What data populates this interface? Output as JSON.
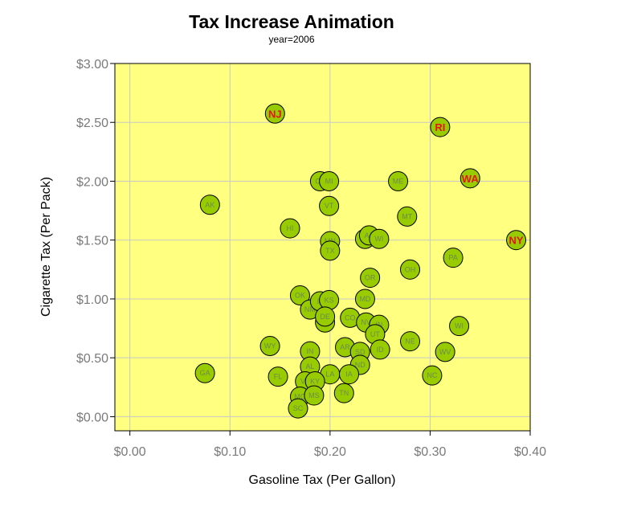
{
  "chart_data": {
    "type": "scatter",
    "title": "Tax Increase Animation",
    "subtitle": "year=2006",
    "xlabel": "Gasoline Tax (Per Gallon)",
    "ylabel": "Cigarette Tax (Per Pack)",
    "xlim": [
      -0.015,
      0.4
    ],
    "ylim": [
      -0.12,
      3.0
    ],
    "xticks": [
      0,
      0.1,
      0.2,
      0.3,
      0.4
    ],
    "xtick_labels": [
      "$0.00",
      "$0.10",
      "$0.20",
      "$0.30",
      "$0.40"
    ],
    "yticks": [
      0,
      0.5,
      1,
      1.5,
      2,
      2.5,
      3
    ],
    "ytick_labels": [
      "$0.00",
      "$0.50",
      "$1.00",
      "$1.50",
      "$2.00",
      "$2.50",
      "$3.00"
    ],
    "grid": true,
    "colors": {
      "plot_background": "#ffff80",
      "grid": "#c8c8c8",
      "marker_fill": "#99cc00",
      "marker_edge": "#000000",
      "label": "#6a8a55",
      "highlight_label": "#e4141a"
    },
    "points": [
      {
        "label": "NJ",
        "x": 0.145,
        "y": 2.575,
        "highlight": true
      },
      {
        "label": "RI",
        "x": 0.31,
        "y": 2.46,
        "highlight": true
      },
      {
        "label": "WA",
        "x": 0.34,
        "y": 2.025,
        "highlight": true
      },
      {
        "label": "NY",
        "x": 0.386,
        "y": 1.5,
        "highlight": true
      },
      {
        "label": "AK",
        "x": 0.08,
        "y": 1.8
      },
      {
        "label": "HI",
        "x": 0.16,
        "y": 1.6
      },
      {
        "label": "CT",
        "x": 0.19,
        "y": 2.0
      },
      {
        "label": "MI",
        "x": 0.199,
        "y": 2.0
      },
      {
        "label": "VT",
        "x": 0.199,
        "y": 1.79
      },
      {
        "label": "ME",
        "x": 0.268,
        "y": 2.0
      },
      {
        "label": "MT",
        "x": 0.277,
        "y": 1.7
      },
      {
        "label": "MN",
        "x": 0.2,
        "y": 1.49
      },
      {
        "label": "TX",
        "x": 0.2,
        "y": 1.41
      },
      {
        "label": "MA",
        "x": 0.235,
        "y": 1.51
      },
      {
        "label": "AZ",
        "x": 0.239,
        "y": 1.54
      },
      {
        "label": "WI",
        "x": 0.249,
        "y": 1.51
      },
      {
        "label": "PA",
        "x": 0.323,
        "y": 1.35
      },
      {
        "label": "OH",
        "x": 0.28,
        "y": 1.25
      },
      {
        "label": "OR",
        "x": 0.24,
        "y": 1.18
      },
      {
        "label": "OK",
        "x": 0.17,
        "y": 1.03
      },
      {
        "label": "NM",
        "x": 0.18,
        "y": 0.91
      },
      {
        "label": "IL",
        "x": 0.19,
        "y": 0.98
      },
      {
        "label": "KS",
        "x": 0.199,
        "y": 0.99
      },
      {
        "label": "MD",
        "x": 0.235,
        "y": 1.0
      },
      {
        "label": "NH",
        "x": 0.195,
        "y": 0.8
      },
      {
        "label": "DE",
        "x": 0.195,
        "y": 0.85
      },
      {
        "label": "CO",
        "x": 0.22,
        "y": 0.84
      },
      {
        "label": "NV",
        "x": 0.236,
        "y": 0.8
      },
      {
        "label": "IN",
        "x": 0.249,
        "y": 0.78
      },
      {
        "label": "UT",
        "x": 0.245,
        "y": 0.7
      },
      {
        "label": "WI",
        "x": 0.329,
        "y": 0.77
      },
      {
        "label": "NE",
        "x": 0.28,
        "y": 0.64
      },
      {
        "label": "WY",
        "x": 0.14,
        "y": 0.6
      },
      {
        "label": "IN",
        "x": 0.18,
        "y": 0.555
      },
      {
        "label": "AR",
        "x": 0.215,
        "y": 0.59
      },
      {
        "label": "SD",
        "x": 0.23,
        "y": 0.55
      },
      {
        "label": "ID",
        "x": 0.25,
        "y": 0.57
      },
      {
        "label": "WV",
        "x": 0.315,
        "y": 0.55
      },
      {
        "label": "AL",
        "x": 0.18,
        "y": 0.425
      },
      {
        "label": "ND",
        "x": 0.23,
        "y": 0.44
      },
      {
        "label": "LA",
        "x": 0.2,
        "y": 0.36
      },
      {
        "label": "IA",
        "x": 0.219,
        "y": 0.36
      },
      {
        "label": "NC",
        "x": 0.302,
        "y": 0.35
      },
      {
        "label": "GA",
        "x": 0.075,
        "y": 0.37
      },
      {
        "label": "FL",
        "x": 0.148,
        "y": 0.34
      },
      {
        "label": "VA",
        "x": 0.175,
        "y": 0.3
      },
      {
        "label": "KY",
        "x": 0.185,
        "y": 0.3
      },
      {
        "label": "MO",
        "x": 0.17,
        "y": 0.17
      },
      {
        "label": "MS",
        "x": 0.184,
        "y": 0.18
      },
      {
        "label": "TN",
        "x": 0.214,
        "y": 0.2
      },
      {
        "label": "SC",
        "x": 0.168,
        "y": 0.07
      }
    ]
  }
}
